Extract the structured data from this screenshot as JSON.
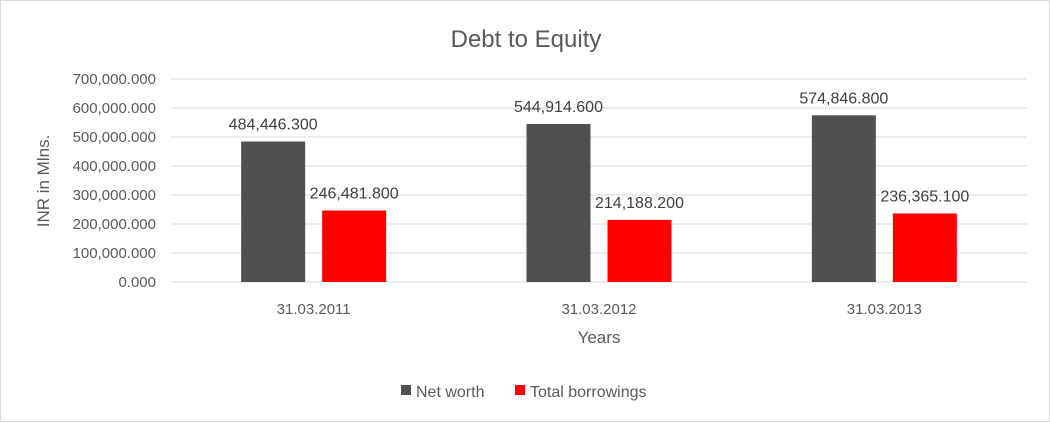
{
  "chart_data": {
    "type": "bar",
    "title": "Debt to Equity",
    "xlabel": "Years",
    "ylabel": "INR in Mlns.",
    "categories": [
      "31.03.2011",
      "31.03.2012",
      "31.03.2013"
    ],
    "series": [
      {
        "name": "Net worth",
        "color": "#505050",
        "values": [
          484446.3,
          544914.6,
          574846.8
        ],
        "labels": [
          "484,446.300",
          "544,914.600",
          "574,846.800"
        ]
      },
      {
        "name": "Total borrowings",
        "color": "#ff0000",
        "values": [
          246481.8,
          214188.2,
          236365.1
        ],
        "labels": [
          "246,481.800",
          "214,188.200",
          "236,365.100"
        ]
      }
    ],
    "ylim": [
      0,
      700000
    ],
    "yticks": [
      {
        "value": 0,
        "label": "0.000"
      },
      {
        "value": 100000,
        "label": "100,000.000"
      },
      {
        "value": 200000,
        "label": "200,000.000"
      },
      {
        "value": 300000,
        "label": "300,000.000"
      },
      {
        "value": 400000,
        "label": "400,000.000"
      },
      {
        "value": 500000,
        "label": "500,000.000"
      },
      {
        "value": 600000,
        "label": "600,000.000"
      },
      {
        "value": 700000,
        "label": "700,000.000"
      }
    ],
    "grid": true,
    "legend_position": "bottom"
  }
}
